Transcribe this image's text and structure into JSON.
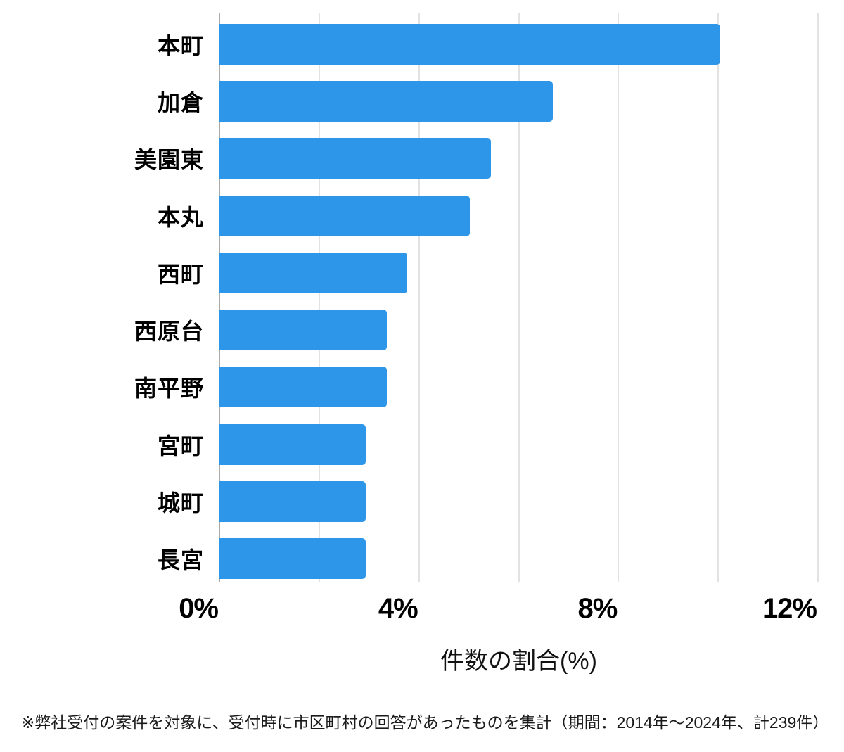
{
  "chart_data": {
    "type": "bar",
    "orientation": "horizontal",
    "title": "",
    "categories": [
      "本町",
      "加倉",
      "美園東",
      "本丸",
      "西町",
      "西原台",
      "南平野",
      "宮町",
      "城町",
      "長宮"
    ],
    "values": [
      10.04,
      6.69,
      5.44,
      5.02,
      3.77,
      3.35,
      3.35,
      2.93,
      2.93,
      2.93
    ],
    "xlabel": "件数の割合(%)",
    "ylabel": "",
    "xlim": [
      0,
      12
    ],
    "xticks": [
      0,
      4,
      8,
      12
    ],
    "xtick_labels": [
      "0%",
      "4%",
      "8%",
      "12%"
    ],
    "gridline_step": 2,
    "grid": "vertical-only",
    "legend": false,
    "bar_color": "#2D96E8",
    "gridline_color": "#E2E2E2",
    "axis_line_color": "#AAAAAA",
    "background_color": "#FFFFFF"
  },
  "footnote": "※弊社受付の案件を対象に、受付時に市区町村の回答があったものを集計（期間：2014年～2024年、計239件）"
}
